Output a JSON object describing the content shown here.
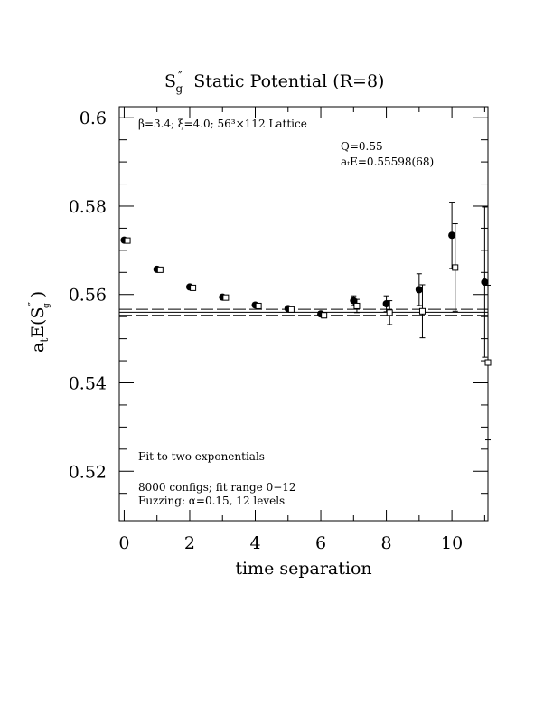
{
  "chart_data": {
    "type": "scatter",
    "title": {
      "main": "S",
      "super": "″",
      "sub": "g",
      "rest": "Static Potential (R=8)"
    },
    "xlabel": "time separation",
    "ylabel": {
      "main": "a",
      "sub": "t",
      "mid": "E(S",
      "super": "″",
      "sub2": "g",
      "close": ")"
    },
    "xlim": [
      -0.15,
      11.1
    ],
    "ylim": [
      0.5088,
      0.6025
    ],
    "x_ticks": [
      0,
      2,
      4,
      6,
      8,
      10
    ],
    "x_tick_labels": [
      "0",
      "2",
      "4",
      "6",
      "8",
      "10"
    ],
    "y_ticks": [
      0.52,
      0.54,
      0.56,
      0.58,
      0.6
    ],
    "y_tick_labels": [
      "0.52",
      "0.54",
      "0.56",
      "0.58",
      "0.6"
    ],
    "grid": false,
    "annotations": {
      "lattice": "β=3.4; ξ=4.0; 56³×112 Lattice",
      "q_value": "Q=0.55",
      "energy": "aₜE=0.55598(68)",
      "fit_desc": "Fit to two exponentials",
      "configs": "8000 configs; fit range 0−12",
      "fuzzing": "Fuzzing: α=0.15, 12 levels"
    },
    "fit": {
      "value": 0.55598,
      "error": 0.00068,
      "x_range": [
        -0.15,
        11.1
      ]
    },
    "series": [
      {
        "marker": "filled-circle",
        "x": [
          0,
          1,
          2,
          3,
          4,
          5,
          6,
          7,
          8,
          9,
          10,
          11
        ],
        "y": [
          0.5723,
          0.5657,
          0.5617,
          0.5594,
          0.5576,
          0.5568,
          0.5556,
          0.5586,
          0.5579,
          0.5611,
          0.5734,
          0.5628
        ],
        "err": [
          0.0002,
          0.0002,
          0.0002,
          0.0002,
          0.0002,
          0.0003,
          0.0005,
          0.0011,
          0.0018,
          0.0036,
          0.0075,
          0.017
        ]
      },
      {
        "marker": "open-square",
        "x": [
          0.1,
          1.1,
          2.1,
          3.1,
          4.1,
          5.1,
          6.1,
          7.1,
          8.1,
          9.1,
          10.1,
          11.1
        ],
        "y": [
          0.5722,
          0.5656,
          0.5615,
          0.5593,
          0.5574,
          0.5566,
          0.5553,
          0.5574,
          0.5559,
          0.5562,
          0.5661,
          0.5446
        ],
        "err": [
          0.0002,
          0.0002,
          0.0002,
          0.0002,
          0.0002,
          0.0003,
          0.0006,
          0.0015,
          0.0027,
          0.006,
          0.0099,
          0.0175
        ]
      }
    ],
    "colors": {
      "ink": "#000000",
      "background": "#ffffff"
    }
  }
}
